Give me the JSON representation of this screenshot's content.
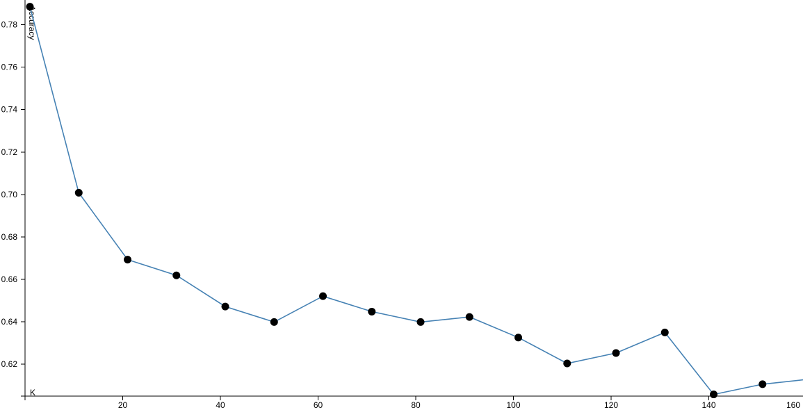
{
  "chart_data": {
    "type": "line",
    "title": "",
    "xlabel": "K",
    "ylabel": "Accuracy",
    "xlim": [
      0,
      160
    ],
    "ylim": [
      0.605,
      0.79
    ],
    "x_ticks": [
      20,
      40,
      60,
      80,
      100,
      120,
      140,
      160
    ],
    "y_ticks": [
      0.62,
      0.64,
      0.66,
      0.68,
      0.7,
      0.72,
      0.74,
      0.76,
      0.78
    ],
    "x_tick_labels": [
      "20",
      "40",
      "60",
      "80",
      "100",
      "120",
      "140",
      "160"
    ],
    "y_tick_labels": [
      "0.62",
      "0.64",
      "0.66",
      "0.68",
      "0.70",
      "0.72",
      "0.74",
      "0.76",
      "0.78"
    ],
    "grid": false,
    "series": [
      {
        "x": [
          1,
          11,
          21,
          31,
          41,
          51,
          61,
          71,
          81,
          91,
          101,
          111,
          121,
          131,
          141,
          151,
          161
        ],
        "y": [
          0.7885,
          0.7008,
          0.6693,
          0.6619,
          0.6472,
          0.6399,
          0.6521,
          0.6448,
          0.6399,
          0.6423,
          0.6326,
          0.6204,
          0.6253,
          0.635,
          0.6058,
          0.6106,
          0.6131
        ]
      }
    ],
    "colors": {
      "line": "#4682b4",
      "point": "#000000",
      "axis": "#000000"
    }
  }
}
